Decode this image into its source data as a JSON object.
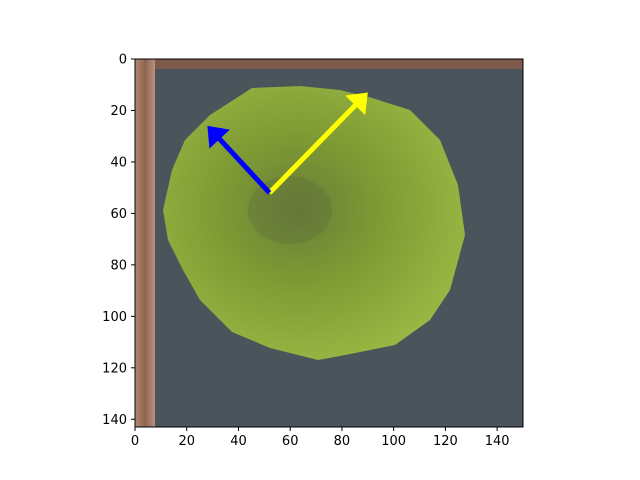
{
  "chart_data": {
    "type": "image",
    "title": "",
    "xlabel": "",
    "ylabel": "",
    "xlim": [
      0,
      150
    ],
    "ylim": [
      143,
      0
    ],
    "x_ticks": [
      0,
      20,
      40,
      60,
      80,
      100,
      120,
      140
    ],
    "y_ticks": [
      0,
      20,
      40,
      60,
      80,
      100,
      120,
      140
    ],
    "grid": false,
    "image_content": {
      "background_colors": {
        "floor": "#4a535a",
        "wood_edge": "#9a6e5a",
        "fruit": "#8aa83a",
        "fruit_shadow": "#5f7a2a"
      },
      "arrows": [
        {
          "name": "yellow-arrow",
          "color": "#ffff00",
          "from": [
            52,
            52
          ],
          "to": [
            90,
            13
          ]
        },
        {
          "name": "blue-arrow",
          "color": "#0000ff",
          "from": [
            52,
            52
          ],
          "to": [
            28,
            26
          ]
        }
      ]
    }
  }
}
